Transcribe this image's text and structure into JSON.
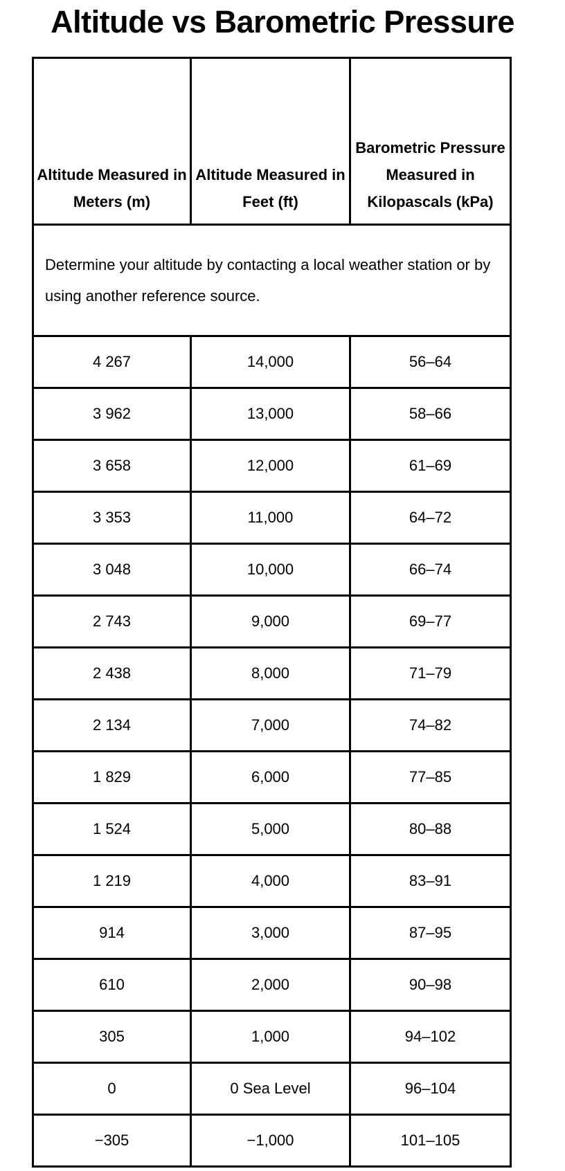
{
  "title": "Altitude vs Barometric Pressure",
  "table": {
    "headers": [
      "Altitude Measured in Meters (m)",
      "Altitude Measured in Feet (ft)",
      "Barometric Pressure Measured in Kilopascals (kPa)"
    ],
    "note": "Determine your altitude by contacting a local weather station or by using another reference source.",
    "rows": [
      [
        "4 267",
        "14,000",
        "56–64"
      ],
      [
        "3 962",
        "13,000",
        "58–66"
      ],
      [
        "3 658",
        "12,000",
        "61–69"
      ],
      [
        "3 353",
        "11,000",
        "64–72"
      ],
      [
        "3 048",
        "10,000",
        "66–74"
      ],
      [
        "2 743",
        "9,000",
        "69–77"
      ],
      [
        "2 438",
        "8,000",
        "71–79"
      ],
      [
        "2 134",
        "7,000",
        "74–82"
      ],
      [
        "1 829",
        "6,000",
        "77–85"
      ],
      [
        "1 524",
        "5,000",
        "80–88"
      ],
      [
        "1 219",
        "4,000",
        "83–91"
      ],
      [
        "914",
        "3,000",
        "87–95"
      ],
      [
        "610",
        "2,000",
        "90–98"
      ],
      [
        "305",
        "1,000",
        "94–102"
      ],
      [
        "0",
        "0 Sea Level",
        "96–104"
      ],
      [
        "−305",
        "−1,000",
        "101–105"
      ]
    ]
  }
}
